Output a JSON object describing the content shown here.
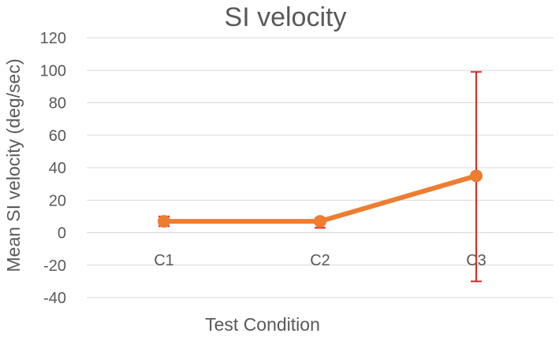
{
  "chart_data": {
    "type": "line",
    "title": "SI velocity",
    "xlabel": "Test Condition",
    "ylabel": "Mean SI velocity (deg/sec)",
    "categories": [
      "C1",
      "C2",
      "C3"
    ],
    "series": [
      {
        "values": [
          7,
          7,
          35
        ],
        "error_low": [
          3,
          4,
          65
        ],
        "error_high": [
          3,
          2,
          64
        ]
      }
    ],
    "ylim": [
      -40,
      120
    ],
    "yticks": [
      -40,
      -20,
      0,
      20,
      40,
      60,
      80,
      100,
      120
    ],
    "grid": true,
    "colors": {
      "line": "#ED7D31",
      "error_bar": "#E8201F",
      "text": "#595959",
      "grid": "#D9D9D9"
    }
  }
}
